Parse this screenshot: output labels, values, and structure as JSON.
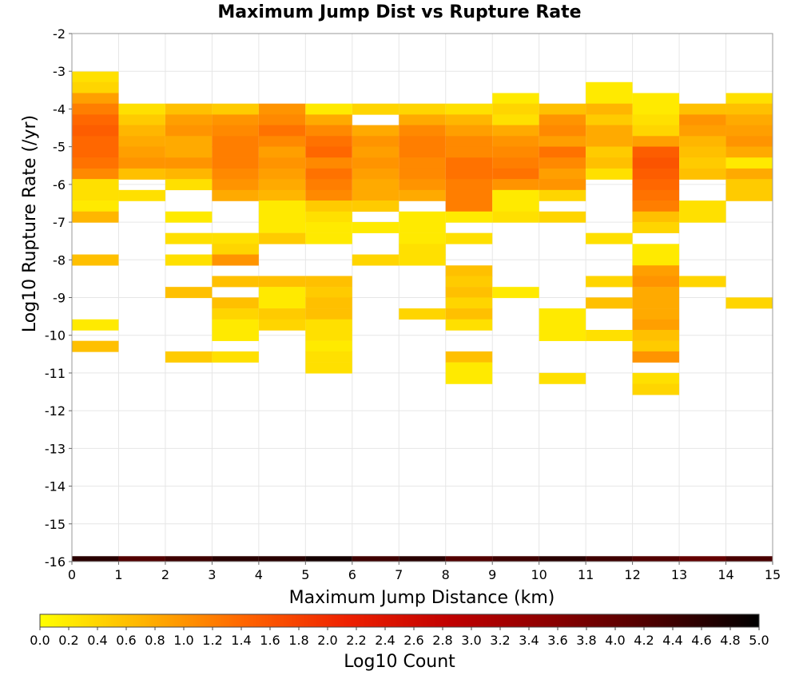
{
  "chart_data": {
    "type": "heatmap",
    "title": "Maximum Jump Dist vs Rupture Rate",
    "xlabel": "Maximum Jump Distance (km)",
    "ylabel": "Log10 Rupture Rate (/yr)",
    "xlim": [
      0,
      15
    ],
    "ylim": [
      -16,
      -2
    ],
    "x_bin_width": 1,
    "y_bin_height": 0.285,
    "x_ticks": [
      "0",
      "1",
      "2",
      "3",
      "4",
      "5",
      "6",
      "7",
      "8",
      "9",
      "10",
      "11",
      "12",
      "13",
      "14",
      "15"
    ],
    "y_ticks": [
      "-2",
      "-3",
      "-4",
      "-5",
      "-6",
      "-7",
      "-8",
      "-9",
      "-10",
      "-11",
      "-12",
      "-13",
      "-14",
      "-15",
      "-16"
    ],
    "grid": true,
    "colorbar": {
      "label": "Log10 Count",
      "range": [
        0.0,
        5.0
      ],
      "ticks": [
        "0.0",
        "0.2",
        "0.4",
        "0.6",
        "0.8",
        "1.0",
        "1.2",
        "1.4",
        "1.6",
        "1.8",
        "2.0",
        "2.2",
        "2.4",
        "2.6",
        "2.8",
        "3.0",
        "3.2",
        "3.4",
        "3.6",
        "3.8",
        "4.0",
        "4.2",
        "4.4",
        "4.6",
        "4.8",
        "5.0"
      ],
      "colors": [
        "#ffff00",
        "#ffb400",
        "#ff6400",
        "#ee2000",
        "#c00000",
        "#8a0000",
        "#4a0000",
        "#000000"
      ]
    },
    "cells": [
      [
        0,
        -3.15,
        0.3
      ],
      [
        0,
        -3.43,
        0.4
      ],
      [
        0,
        -3.72,
        0.9
      ],
      [
        0,
        -4.0,
        1.2
      ],
      [
        0,
        -4.29,
        1.4
      ],
      [
        0,
        -4.57,
        1.5
      ],
      [
        0,
        -4.86,
        1.4
      ],
      [
        0,
        -5.14,
        1.4
      ],
      [
        0,
        -5.43,
        1.3
      ],
      [
        0,
        -5.72,
        1.1
      ],
      [
        0,
        -6.0,
        0.3
      ],
      [
        0,
        -6.29,
        0.3
      ],
      [
        0,
        -6.57,
        0.2
      ],
      [
        0,
        -6.86,
        0.7
      ],
      [
        0,
        -8.0,
        0.6
      ],
      [
        0,
        -9.72,
        0.2
      ],
      [
        0,
        -10.29,
        0.6
      ],
      [
        1,
        -4.0,
        0.3
      ],
      [
        1,
        -4.29,
        0.5
      ],
      [
        1,
        -4.57,
        0.7
      ],
      [
        1,
        -4.86,
        0.8
      ],
      [
        1,
        -5.14,
        0.9
      ],
      [
        1,
        -5.43,
        1.0
      ],
      [
        1,
        -5.72,
        0.6
      ],
      [
        1,
        -6.29,
        0.3
      ],
      [
        2,
        -4.0,
        0.6
      ],
      [
        2,
        -4.29,
        0.9
      ],
      [
        2,
        -4.57,
        1.0
      ],
      [
        2,
        -4.86,
        0.8
      ],
      [
        2,
        -5.14,
        0.8
      ],
      [
        2,
        -5.43,
        1.0
      ],
      [
        2,
        -5.72,
        0.7
      ],
      [
        2,
        -6.0,
        0.3
      ],
      [
        2,
        -6.86,
        0.2
      ],
      [
        2,
        -7.43,
        0.3
      ],
      [
        2,
        -8.0,
        0.3
      ],
      [
        2,
        -8.86,
        0.6
      ],
      [
        2,
        -10.57,
        0.5
      ],
      [
        3,
        -4.0,
        0.5
      ],
      [
        3,
        -4.29,
        1.0
      ],
      [
        3,
        -4.57,
        1.1
      ],
      [
        3,
        -4.86,
        1.2
      ],
      [
        3,
        -5.14,
        1.2
      ],
      [
        3,
        -5.43,
        1.2
      ],
      [
        3,
        -5.72,
        1.1
      ],
      [
        3,
        -6.0,
        1.0
      ],
      [
        3,
        -6.29,
        0.8
      ],
      [
        3,
        -7.43,
        0.3
      ],
      [
        3,
        -7.72,
        0.4
      ],
      [
        3,
        -8.0,
        1.0
      ],
      [
        3,
        -8.57,
        0.6
      ],
      [
        3,
        -9.14,
        0.6
      ],
      [
        3,
        -9.43,
        0.4
      ],
      [
        3,
        -9.72,
        0.2
      ],
      [
        3,
        -10.0,
        0.2
      ],
      [
        3,
        -10.57,
        0.3
      ],
      [
        4,
        -4.0,
        1.0
      ],
      [
        4,
        -4.29,
        1.1
      ],
      [
        4,
        -4.57,
        1.3
      ],
      [
        4,
        -4.86,
        1.1
      ],
      [
        4,
        -5.14,
        0.9
      ],
      [
        4,
        -5.43,
        1.0
      ],
      [
        4,
        -5.72,
        0.9
      ],
      [
        4,
        -6.0,
        0.8
      ],
      [
        4,
        -6.29,
        0.7
      ],
      [
        4,
        -6.57,
        0.2
      ],
      [
        4,
        -6.86,
        0.2
      ],
      [
        4,
        -7.14,
        0.2
      ],
      [
        4,
        -7.43,
        0.5
      ],
      [
        4,
        -8.57,
        0.6
      ],
      [
        4,
        -8.86,
        0.2
      ],
      [
        4,
        -9.14,
        0.2
      ],
      [
        4,
        -9.43,
        0.5
      ],
      [
        4,
        -9.72,
        0.4
      ],
      [
        5,
        -4.0,
        0.2
      ],
      [
        5,
        -4.29,
        0.8
      ],
      [
        5,
        -4.57,
        1.1
      ],
      [
        5,
        -4.86,
        1.3
      ],
      [
        5,
        -5.14,
        1.4
      ],
      [
        5,
        -5.43,
        1.1
      ],
      [
        5,
        -5.72,
        1.3
      ],
      [
        5,
        -6.0,
        1.2
      ],
      [
        5,
        -6.29,
        1.1
      ],
      [
        5,
        -6.57,
        0.5
      ],
      [
        5,
        -6.86,
        0.3
      ],
      [
        5,
        -7.14,
        0.2
      ],
      [
        5,
        -7.43,
        0.2
      ],
      [
        5,
        -8.57,
        0.6
      ],
      [
        5,
        -8.86,
        0.5
      ],
      [
        5,
        -9.14,
        0.6
      ],
      [
        5,
        -9.43,
        0.6
      ],
      [
        5,
        -9.72,
        0.3
      ],
      [
        5,
        -10.0,
        0.3
      ],
      [
        5,
        -10.29,
        0.2
      ],
      [
        5,
        -10.57,
        0.3
      ],
      [
        5,
        -10.86,
        0.3
      ],
      [
        6,
        -4.0,
        0.4
      ],
      [
        6,
        -4.57,
        0.8
      ],
      [
        6,
        -4.86,
        1.0
      ],
      [
        6,
        -5.14,
        0.9
      ],
      [
        6,
        -5.43,
        1.0
      ],
      [
        6,
        -5.72,
        0.9
      ],
      [
        6,
        -6.0,
        0.8
      ],
      [
        6,
        -6.29,
        0.8
      ],
      [
        6,
        -6.57,
        0.5
      ],
      [
        6,
        -7.14,
        0.2
      ],
      [
        6,
        -8.0,
        0.4
      ],
      [
        7,
        -4.0,
        0.4
      ],
      [
        7,
        -4.29,
        0.8
      ],
      [
        7,
        -4.57,
        1.1
      ],
      [
        7,
        -4.86,
        1.2
      ],
      [
        7,
        -5.14,
        1.2
      ],
      [
        7,
        -5.43,
        1.1
      ],
      [
        7,
        -5.72,
        1.1
      ],
      [
        7,
        -6.0,
        1.0
      ],
      [
        7,
        -6.29,
        0.8
      ],
      [
        7,
        -6.86,
        0.2
      ],
      [
        7,
        -7.14,
        0.2
      ],
      [
        7,
        -7.43,
        0.2
      ],
      [
        7,
        -7.72,
        0.3
      ],
      [
        7,
        -8.0,
        0.3
      ],
      [
        7,
        -9.43,
        0.4
      ],
      [
        8,
        -4.0,
        0.3
      ],
      [
        8,
        -4.29,
        0.7
      ],
      [
        8,
        -4.57,
        0.9
      ],
      [
        8,
        -4.86,
        1.1
      ],
      [
        8,
        -5.14,
        1.1
      ],
      [
        8,
        -5.43,
        1.3
      ],
      [
        8,
        -5.72,
        1.3
      ],
      [
        8,
        -6.0,
        1.2
      ],
      [
        8,
        -6.29,
        1.2
      ],
      [
        8,
        -6.57,
        1.2
      ],
      [
        8,
        -6.86,
        0.2
      ],
      [
        8,
        -7.43,
        0.3
      ],
      [
        8,
        -8.29,
        0.6
      ],
      [
        8,
        -8.57,
        0.5
      ],
      [
        8,
        -8.86,
        0.6
      ],
      [
        8,
        -9.14,
        0.4
      ],
      [
        8,
        -9.43,
        0.6
      ],
      [
        8,
        -9.72,
        0.3
      ],
      [
        8,
        -10.57,
        0.6
      ],
      [
        8,
        -10.86,
        0.2
      ],
      [
        8,
        -11.14,
        0.2
      ],
      [
        9,
        -3.72,
        0.2
      ],
      [
        9,
        -4.0,
        0.4
      ],
      [
        9,
        -4.29,
        0.3
      ],
      [
        9,
        -4.57,
        0.8
      ],
      [
        9,
        -4.86,
        1.0
      ],
      [
        9,
        -5.14,
        1.1
      ],
      [
        9,
        -5.43,
        1.2
      ],
      [
        9,
        -5.72,
        1.3
      ],
      [
        9,
        -6.0,
        1.0
      ],
      [
        9,
        -6.29,
        0.2
      ],
      [
        9,
        -6.57,
        0.2
      ],
      [
        9,
        -6.86,
        0.3
      ],
      [
        9,
        -8.86,
        0.2
      ],
      [
        10,
        -4.0,
        0.6
      ],
      [
        10,
        -4.29,
        1.0
      ],
      [
        10,
        -4.57,
        1.1
      ],
      [
        10,
        -4.86,
        0.9
      ],
      [
        10,
        -5.14,
        1.3
      ],
      [
        10,
        -5.43,
        1.1
      ],
      [
        10,
        -5.72,
        0.9
      ],
      [
        10,
        -6.0,
        1.0
      ],
      [
        10,
        -6.29,
        0.4
      ],
      [
        10,
        -6.86,
        0.4
      ],
      [
        10,
        -9.43,
        0.2
      ],
      [
        10,
        -9.72,
        0.2
      ],
      [
        10,
        -10.0,
        0.2
      ],
      [
        10,
        -11.14,
        0.3
      ],
      [
        11,
        -3.43,
        0.2
      ],
      [
        11,
        -3.72,
        0.2
      ],
      [
        11,
        -4.0,
        0.7
      ],
      [
        11,
        -4.29,
        0.5
      ],
      [
        11,
        -4.57,
        0.8
      ],
      [
        11,
        -4.86,
        0.8
      ],
      [
        11,
        -5.14,
        0.5
      ],
      [
        11,
        -5.43,
        0.6
      ],
      [
        11,
        -5.72,
        0.3
      ],
      [
        11,
        -7.43,
        0.3
      ],
      [
        11,
        -8.57,
        0.4
      ],
      [
        11,
        -9.14,
        0.6
      ],
      [
        11,
        -10.0,
        0.3
      ],
      [
        12,
        -3.72,
        0.2
      ],
      [
        12,
        -4.0,
        0.2
      ],
      [
        12,
        -4.29,
        0.3
      ],
      [
        12,
        -4.57,
        0.4
      ],
      [
        12,
        -4.86,
        0.9
      ],
      [
        12,
        -5.14,
        1.5
      ],
      [
        12,
        -5.43,
        1.6
      ],
      [
        12,
        -5.72,
        1.5
      ],
      [
        12,
        -6.0,
        1.4
      ],
      [
        12,
        -6.29,
        1.3
      ],
      [
        12,
        -6.57,
        1.2
      ],
      [
        12,
        -6.86,
        0.6
      ],
      [
        12,
        -7.14,
        0.4
      ],
      [
        12,
        -7.72,
        0.2
      ],
      [
        12,
        -8.0,
        0.2
      ],
      [
        12,
        -8.29,
        0.9
      ],
      [
        12,
        -8.57,
        1.0
      ],
      [
        12,
        -8.86,
        0.8
      ],
      [
        12,
        -9.14,
        0.8
      ],
      [
        12,
        -9.43,
        0.8
      ],
      [
        12,
        -9.72,
        0.9
      ],
      [
        12,
        -10.0,
        0.6
      ],
      [
        12,
        -10.29,
        0.5
      ],
      [
        12,
        -10.57,
        1.0
      ],
      [
        12,
        -11.14,
        0.3
      ],
      [
        12,
        -11.43,
        0.4
      ],
      [
        13,
        -4.0,
        0.6
      ],
      [
        13,
        -4.29,
        1.0
      ],
      [
        13,
        -4.57,
        0.9
      ],
      [
        13,
        -4.86,
        0.7
      ],
      [
        13,
        -5.14,
        0.6
      ],
      [
        13,
        -5.43,
        0.5
      ],
      [
        13,
        -5.72,
        0.6
      ],
      [
        13,
        -6.57,
        0.3
      ],
      [
        13,
        -6.86,
        0.3
      ],
      [
        13,
        -8.57,
        0.4
      ],
      [
        14,
        -3.72,
        0.3
      ],
      [
        14,
        -4.0,
        0.6
      ],
      [
        14,
        -4.29,
        0.8
      ],
      [
        14,
        -4.57,
        0.9
      ],
      [
        14,
        -4.86,
        1.0
      ],
      [
        14,
        -5.14,
        0.8
      ],
      [
        14,
        -5.43,
        0.2
      ],
      [
        14,
        -5.72,
        0.8
      ],
      [
        14,
        -6.0,
        0.5
      ],
      [
        14,
        -6.29,
        0.5
      ],
      [
        14,
        -9.14,
        0.4
      ]
    ],
    "bottom_row": {
      "y": -16,
      "values": [
        4.6,
        4.2,
        4.4,
        4.6,
        4.6,
        4.8,
        4.4,
        4.6,
        4.2,
        4.4,
        4.6,
        4.4,
        4.2,
        4.0,
        4.3
      ]
    }
  }
}
